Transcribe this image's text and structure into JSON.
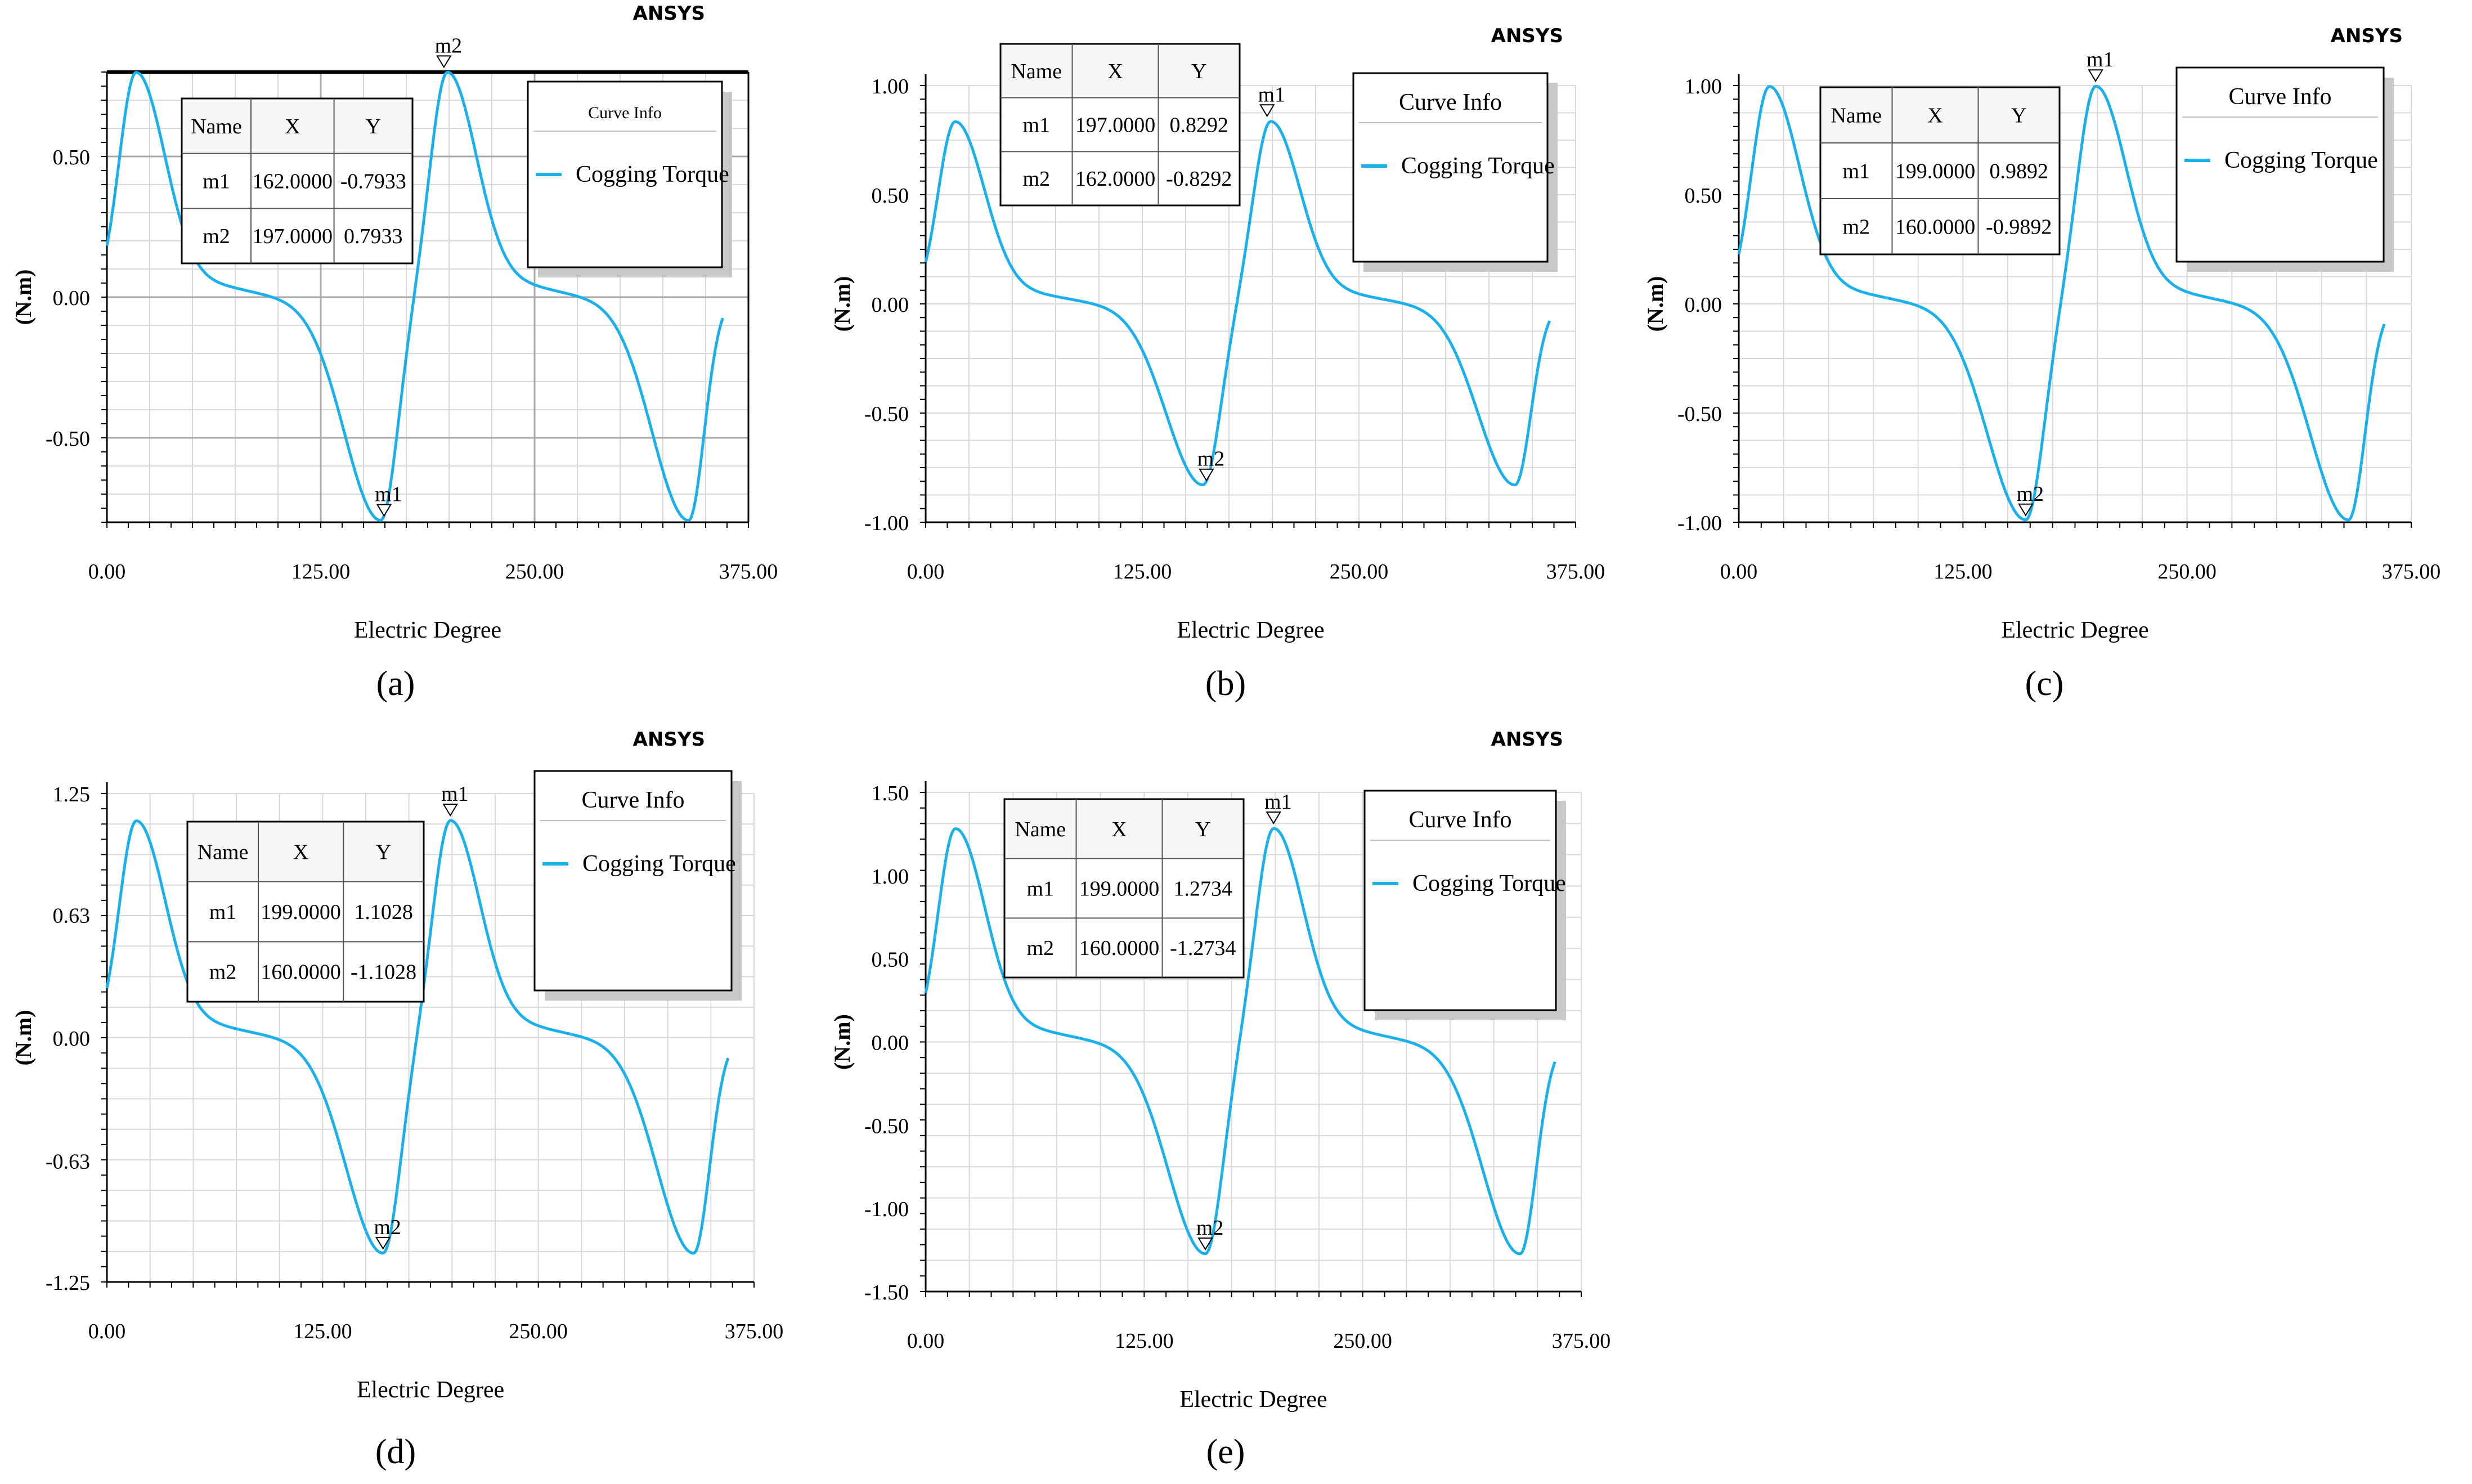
{
  "figure": {
    "brand": "ANSYS",
    "panel_labels": [
      "(a)",
      "(b)",
      "(c)",
      "(d)",
      "(e)"
    ]
  },
  "colors": {
    "curve": "#1ab0ec",
    "grid": "#d9d9d9",
    "axis": "#000000",
    "legend_shadow": "#c8c8c8",
    "table_header": "#f6f6f6"
  },
  "chart_data": [
    {
      "type": "line",
      "panel": "(a)",
      "xlabel": "Electric Degree",
      "ylabel": "(N.m)",
      "xlim": [
        0,
        375
      ],
      "ylim": [
        -0.8,
        0.8
      ],
      "xticks": [
        0,
        125,
        250,
        375
      ],
      "xtick_labels": [
        "0.00",
        "125.00",
        "250.00",
        "375.00"
      ],
      "yticks": [
        0.5,
        0.0,
        -0.5
      ],
      "ytick_labels": [
        "0.50",
        "0.00",
        "-0.50"
      ],
      "series": [
        {
          "name": "Cogging Torque",
          "peak": 0.7933,
          "x_end": 360
        }
      ],
      "legend": {
        "title": "Curve Info",
        "entries": [
          "Cogging Torque"
        ]
      },
      "markers": [
        {
          "name": "m1",
          "x": 162,
          "y": -0.7933
        },
        {
          "name": "m2",
          "x": 197,
          "y": 0.7933
        }
      ],
      "table": {
        "headers": [
          "Name",
          "X",
          "Y"
        ],
        "rows": [
          [
            "m1",
            "162.0000",
            "-0.7933"
          ],
          [
            "m2",
            "197.0000",
            "0.7933"
          ]
        ]
      }
    },
    {
      "type": "line",
      "panel": "(b)",
      "xlabel": "Electric Degree",
      "ylabel": "(N.m)",
      "xlim": [
        0,
        375
      ],
      "ylim": [
        -1.0,
        1.0
      ],
      "xticks": [
        0,
        125,
        250,
        375
      ],
      "xtick_labels": [
        "0.00",
        "125.00",
        "250.00",
        "375.00"
      ],
      "yticks": [
        1.0,
        0.5,
        0.0,
        -0.5,
        -1.0
      ],
      "ytick_labels": [
        "1.00",
        "0.50",
        "0.00",
        "-0.50",
        "-1.00"
      ],
      "series": [
        {
          "name": "Cogging Torque",
          "peak": 0.8292,
          "x_end": 360
        }
      ],
      "legend": {
        "title": "Curve Info",
        "entries": [
          "Cogging Torque"
        ]
      },
      "markers": [
        {
          "name": "m1",
          "x": 197,
          "y": 0.8292
        },
        {
          "name": "m2",
          "x": 162,
          "y": -0.8292
        }
      ],
      "table": {
        "headers": [
          "Name",
          "X",
          "Y"
        ],
        "rows": [
          [
            "m1",
            "197.0000",
            "0.8292"
          ],
          [
            "m2",
            "162.0000",
            "-0.8292"
          ]
        ]
      }
    },
    {
      "type": "line",
      "panel": "(c)",
      "xlabel": "Electric Degree",
      "ylabel": "(N.m)",
      "xlim": [
        0,
        375
      ],
      "ylim": [
        -1.0,
        1.0
      ],
      "xticks": [
        0,
        125,
        250,
        375
      ],
      "xtick_labels": [
        "0.00",
        "125.00",
        "250.00",
        "375.00"
      ],
      "yticks": [
        1.0,
        0.5,
        0.0,
        -0.5,
        -1.0
      ],
      "ytick_labels": [
        "1.00",
        "0.50",
        "0.00",
        "-0.50",
        "-1.00"
      ],
      "series": [
        {
          "name": "Cogging Torque",
          "peak": 0.9892,
          "x_end": 360
        }
      ],
      "legend": {
        "title": "Curve Info",
        "entries": [
          "Cogging Torque"
        ]
      },
      "markers": [
        {
          "name": "m1",
          "x": 199,
          "y": 0.9892
        },
        {
          "name": "m2",
          "x": 160,
          "y": -0.9892
        }
      ],
      "table": {
        "headers": [
          "Name",
          "X",
          "Y"
        ],
        "rows": [
          [
            "m1",
            "199.0000",
            "0.9892"
          ],
          [
            "m2",
            "160.0000",
            "-0.9892"
          ]
        ]
      }
    },
    {
      "type": "line",
      "panel": "(d)",
      "xlabel": "Electric Degree",
      "ylabel": "(N.m)",
      "xlim": [
        0,
        375
      ],
      "ylim": [
        -1.25,
        1.25
      ],
      "xticks": [
        0,
        125,
        250,
        375
      ],
      "xtick_labels": [
        "0.00",
        "125.00",
        "250.00",
        "375.00"
      ],
      "yticks": [
        1.25,
        0.63,
        0.0,
        -0.63,
        -1.25
      ],
      "ytick_labels": [
        "1.25",
        "0.63",
        "0.00",
        "-0.63",
        "-1.25"
      ],
      "series": [
        {
          "name": "Cogging Torque",
          "peak": 1.1028,
          "x_end": 360
        }
      ],
      "legend": {
        "title": "Curve Info",
        "entries": [
          "Cogging Torque"
        ]
      },
      "markers": [
        {
          "name": "m1",
          "x": 199,
          "y": 1.1028
        },
        {
          "name": "m2",
          "x": 160,
          "y": -1.1028
        }
      ],
      "table": {
        "headers": [
          "Name",
          "X",
          "Y"
        ],
        "rows": [
          [
            "m1",
            "199.0000",
            "1.1028"
          ],
          [
            "m2",
            "160.0000",
            "-1.1028"
          ]
        ]
      }
    },
    {
      "type": "line",
      "panel": "(e)",
      "xlabel": "Electric Degree",
      "ylabel": "(N.m)",
      "xlim": [
        0,
        375
      ],
      "ylim": [
        -1.5,
        1.5
      ],
      "xticks": [
        0,
        125,
        250,
        375
      ],
      "xtick_labels": [
        "0.00",
        "125.00",
        "250.00",
        "375.00"
      ],
      "yticks": [
        1.5,
        1.0,
        0.5,
        0.0,
        -0.5,
        -1.0,
        -1.5
      ],
      "ytick_labels": [
        "1.50",
        "1.00",
        "0.50",
        "0.00",
        "-0.50",
        "-1.00",
        "-1.50"
      ],
      "series": [
        {
          "name": "Cogging Torque",
          "peak": 1.2734,
          "x_end": 360
        }
      ],
      "legend": {
        "title": "Curve Info",
        "entries": [
          "Cogging Torque"
        ]
      },
      "markers": [
        {
          "name": "m1",
          "x": 199,
          "y": 1.2734
        },
        {
          "name": "m2",
          "x": 160,
          "y": -1.2734
        }
      ],
      "table": {
        "headers": [
          "Name",
          "X",
          "Y"
        ],
        "rows": [
          [
            "m1",
            "199.0000",
            "1.2734"
          ],
          [
            "m2",
            "160.0000",
            "-1.2734"
          ]
        ]
      }
    }
  ]
}
